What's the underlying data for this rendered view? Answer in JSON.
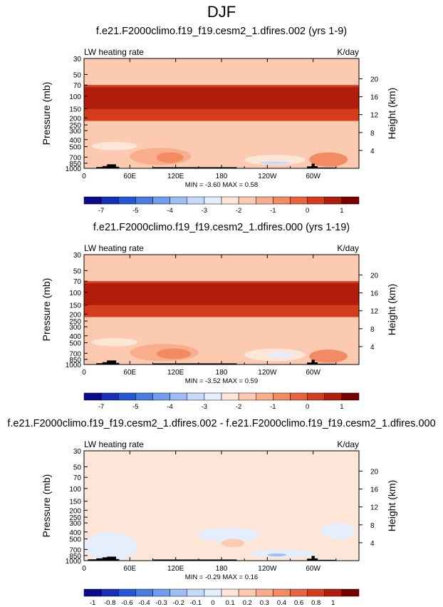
{
  "figure_title": "DJF",
  "chart_data": [
    {
      "type": "heatmap",
      "title": "f.e21.F2000climo.f19_f19.cesm2_1.dfires.002 (yrs 1-9)",
      "left_label": "LW heating rate",
      "right_label": "K/day",
      "ylabel": "Pressure (mb)",
      "ylabel_right": "Height (km)",
      "xticks": [
        "0",
        "60E",
        "120E",
        "180",
        "120W",
        "60W"
      ],
      "xtick_values": [
        0,
        60,
        120,
        180,
        240,
        300
      ],
      "xlim": [
        0,
        360
      ],
      "yticks": [
        "30",
        "50",
        "70",
        "100",
        "150",
        "200",
        "250",
        "300",
        "400",
        "500",
        "700",
        "850",
        "1000"
      ],
      "ytick_values": [
        30,
        50,
        70,
        100,
        150,
        200,
        250,
        300,
        400,
        500,
        700,
        850,
        1000
      ],
      "ylim": [
        30,
        1000
      ],
      "right_ticks": [
        "20",
        "16",
        "12",
        "8",
        "4"
      ],
      "right_tick_values": [
        20,
        16,
        12,
        8,
        4
      ],
      "stats": "MIN =  -3.60  MAX =  0.58",
      "min": -3.6,
      "max": 0.58,
      "colorbar_labels": [
        "-7",
        "-5",
        "-4",
        "-3",
        "-2",
        "-1",
        "0",
        "1"
      ],
      "colorbar_colors": [
        "#0a0a8a",
        "#1530b8",
        "#2456d6",
        "#4a7be0",
        "#739df0",
        "#9dbdf4",
        "#c6dbfa",
        "#e5eefc",
        "#fde6d8",
        "#fbcab0",
        "#f8ad8c",
        "#f28a64",
        "#e86440",
        "#d43d1c",
        "#b01d0a",
        "#7a0000"
      ],
      "features": [
        {
          "name": "upper-band-outer",
          "lon": [
            0,
            360
          ],
          "p": [
            70,
            220
          ],
          "value": 0.0
        },
        {
          "name": "upper-band-core",
          "lon": [
            0,
            360
          ],
          "p": [
            75,
            150
          ],
          "value": 0.4
        },
        {
          "name": "upper-band-peak",
          "lon": [
            120,
            180
          ],
          "p": [
            85,
            120
          ],
          "value": 0.58
        },
        {
          "name": "mid-warm-africa",
          "lon": [
            60,
            140
          ],
          "p": [
            520,
            900
          ],
          "value": -1.5
        },
        {
          "name": "warm-core",
          "lon": [
            95,
            130
          ],
          "p": [
            600,
            840
          ],
          "value": -0.8
        },
        {
          "name": "cool-pacific",
          "lon": [
            210,
            290
          ],
          "p": [
            650,
            900
          ],
          "value": -3.0
        },
        {
          "name": "cool-pacific-core",
          "lon": [
            230,
            270
          ],
          "p": [
            800,
            880
          ],
          "value": -3.6
        },
        {
          "name": "warm-samerica",
          "lon": [
            295,
            345
          ],
          "p": [
            600,
            950
          ],
          "value": -1.2
        },
        {
          "name": "cool-west",
          "lon": [
            10,
            70
          ],
          "p": [
            430,
            560
          ],
          "value": -2.6
        }
      ],
      "topography": [
        {
          "lon": [
            16,
            24
          ],
          "p": 960
        },
        {
          "lon": [
            24,
            30
          ],
          "p": 930
        },
        {
          "lon": [
            30,
            42
          ],
          "p": 880
        },
        {
          "lon": [
            42,
            46
          ],
          "p": 950
        },
        {
          "lon": [
            90,
            200
          ],
          "p": 965
        },
        {
          "lon": [
            292,
            298
          ],
          "p": 940
        },
        {
          "lon": [
            298,
            302
          ],
          "p": 860
        },
        {
          "lon": [
            302,
            306
          ],
          "p": 930
        },
        {
          "lon": [
            306,
            330
          ],
          "p": 975
        }
      ]
    },
    {
      "type": "heatmap",
      "title": "f.e21.F2000climo.f19_f19.cesm2_1.dfires.000 (yrs 1-19)",
      "left_label": "LW heating rate",
      "right_label": "K/day",
      "ylabel": "Pressure (mb)",
      "ylabel_right": "Height (km)",
      "xticks": [
        "0",
        "60E",
        "120E",
        "180",
        "120W",
        "60W"
      ],
      "xtick_values": [
        0,
        60,
        120,
        180,
        240,
        300
      ],
      "xlim": [
        0,
        360
      ],
      "yticks": [
        "30",
        "50",
        "70",
        "100",
        "150",
        "200",
        "250",
        "300",
        "400",
        "500",
        "700",
        "850",
        "1000"
      ],
      "ytick_values": [
        30,
        50,
        70,
        100,
        150,
        200,
        250,
        300,
        400,
        500,
        700,
        850,
        1000
      ],
      "ylim": [
        30,
        1000
      ],
      "right_ticks": [
        "20",
        "16",
        "12",
        "8",
        "4"
      ],
      "right_tick_values": [
        20,
        16,
        12,
        8,
        4
      ],
      "stats": "MIN =  -3.52  MAX =  0.59",
      "min": -3.52,
      "max": 0.59,
      "colorbar_labels": [
        "-7",
        "-5",
        "-4",
        "-3",
        "-2",
        "-1",
        "0",
        "1"
      ],
      "colorbar_colors": [
        "#0a0a8a",
        "#1530b8",
        "#2456d6",
        "#4a7be0",
        "#739df0",
        "#9dbdf4",
        "#c6dbfa",
        "#e5eefc",
        "#fde6d8",
        "#fbcab0",
        "#f8ad8c",
        "#f28a64",
        "#e86440",
        "#d43d1c",
        "#b01d0a",
        "#7a0000"
      ],
      "features": [
        {
          "name": "upper-band-outer",
          "lon": [
            0,
            360
          ],
          "p": [
            70,
            220
          ],
          "value": 0.0
        },
        {
          "name": "upper-band-core",
          "lon": [
            0,
            360
          ],
          "p": [
            75,
            150
          ],
          "value": 0.4
        },
        {
          "name": "upper-band-peak",
          "lon": [
            120,
            180
          ],
          "p": [
            85,
            120
          ],
          "value": 0.59
        },
        {
          "name": "mid-warm-africa",
          "lon": [
            60,
            150
          ],
          "p": [
            520,
            900
          ],
          "value": -1.5
        },
        {
          "name": "warm-core",
          "lon": [
            95,
            140
          ],
          "p": [
            600,
            840
          ],
          "value": -0.8
        },
        {
          "name": "cool-pacific",
          "lon": [
            210,
            290
          ],
          "p": [
            600,
            900
          ],
          "value": -2.8
        },
        {
          "name": "cool-pacific-core",
          "lon": [
            240,
            275
          ],
          "p": [
            680,
            800
          ],
          "value": -3.52
        },
        {
          "name": "warm-samerica",
          "lon": [
            295,
            345
          ],
          "p": [
            620,
            950
          ],
          "value": -1.2
        },
        {
          "name": "cool-west",
          "lon": [
            10,
            70
          ],
          "p": [
            430,
            560
          ],
          "value": -2.6
        }
      ],
      "topography": [
        {
          "lon": [
            16,
            24
          ],
          "p": 960
        },
        {
          "lon": [
            24,
            30
          ],
          "p": 930
        },
        {
          "lon": [
            30,
            42
          ],
          "p": 880
        },
        {
          "lon": [
            42,
            46
          ],
          "p": 950
        },
        {
          "lon": [
            90,
            200
          ],
          "p": 965
        },
        {
          "lon": [
            292,
            298
          ],
          "p": 940
        },
        {
          "lon": [
            298,
            302
          ],
          "p": 860
        },
        {
          "lon": [
            302,
            306
          ],
          "p": 930
        },
        {
          "lon": [
            306,
            330
          ],
          "p": 975
        }
      ]
    },
    {
      "type": "heatmap",
      "title": "f.e21.F2000climo.f19_f19.cesm2_1.dfires.002 - f.e21.F2000climo.f19_f19.cesm2_1.dfires.000",
      "left_label": "LW heating rate",
      "right_label": "K/day",
      "ylabel": "Pressure (mb)",
      "ylabel_right": "Height (km)",
      "xticks": [
        "0",
        "60E",
        "120E",
        "180",
        "120W",
        "60W"
      ],
      "xtick_values": [
        0,
        60,
        120,
        180,
        240,
        300
      ],
      "xlim": [
        0,
        360
      ],
      "yticks": [
        "30",
        "50",
        "70",
        "100",
        "150",
        "200",
        "250",
        "300",
        "400",
        "500",
        "700",
        "850",
        "1000"
      ],
      "ytick_values": [
        30,
        50,
        70,
        100,
        150,
        200,
        250,
        300,
        400,
        500,
        700,
        850,
        1000
      ],
      "ylim": [
        30,
        1000
      ],
      "right_ticks": [
        "20",
        "16",
        "12",
        "8",
        "4"
      ],
      "right_tick_values": [
        20,
        16,
        12,
        8,
        4
      ],
      "stats": "MIN =  -0.29  MAX =  0.16",
      "min": -0.29,
      "max": 0.16,
      "colorbar_labels": [
        "-1",
        "-0.8",
        "-0.6",
        "-0.4",
        "-0.3",
        "-0.2",
        "-0.1",
        "0",
        "0.1",
        "0.2",
        "0.3",
        "0.4",
        "0.6",
        "0.8",
        "1"
      ],
      "colorbar_colors": [
        "#0a0a8a",
        "#1530b8",
        "#2456d6",
        "#4a7be0",
        "#739df0",
        "#9dbdf4",
        "#c6dbfa",
        "#e5eefc",
        "#fde6d8",
        "#fbcab0",
        "#f8ad8c",
        "#f28a64",
        "#e86440",
        "#d43d1c",
        "#b01d0a",
        "#7a0000"
      ],
      "features": [
        {
          "name": "diff-west-cool",
          "lon": [
            0,
            70
          ],
          "p": [
            400,
            1000
          ],
          "value": -0.05
        },
        {
          "name": "diff-mid-cool",
          "lon": [
            150,
            230
          ],
          "p": [
            350,
            550
          ],
          "value": -0.08
        },
        {
          "name": "diff-pacific-cool",
          "lon": [
            215,
            305
          ],
          "p": [
            700,
            900
          ],
          "value": -0.12
        },
        {
          "name": "diff-pacific-core",
          "lon": [
            240,
            265
          ],
          "p": [
            800,
            870
          ],
          "value": -0.29
        },
        {
          "name": "diff-warm-patch",
          "lon": [
            180,
            210
          ],
          "p": [
            500,
            650
          ],
          "value": 0.16
        },
        {
          "name": "diff-east-cool",
          "lon": [
            310,
            355
          ],
          "p": [
            300,
            500
          ],
          "value": -0.08
        }
      ],
      "topography": [
        {
          "lon": [
            5,
            16
          ],
          "p": 960
        },
        {
          "lon": [
            16,
            24
          ],
          "p": 930
        },
        {
          "lon": [
            24,
            30
          ],
          "p": 900
        },
        {
          "lon": [
            30,
            42
          ],
          "p": 880
        },
        {
          "lon": [
            42,
            46
          ],
          "p": 950
        },
        {
          "lon": [
            90,
            200
          ],
          "p": 965
        },
        {
          "lon": [
            292,
            298
          ],
          "p": 940
        },
        {
          "lon": [
            298,
            302
          ],
          "p": 860
        },
        {
          "lon": [
            302,
            306
          ],
          "p": 930
        },
        {
          "lon": [
            306,
            330
          ],
          "p": 975
        }
      ]
    }
  ]
}
